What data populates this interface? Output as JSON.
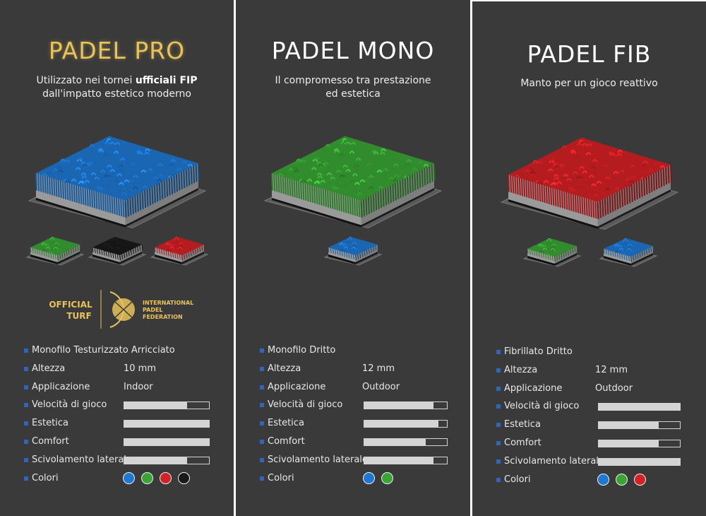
{
  "colors": {
    "blue": "#1e78d2",
    "green": "#3aa535",
    "red": "#d42125",
    "black": "#1a1a1a",
    "bullet": "#2f66b8",
    "gold": "#e9c35a"
  },
  "products": [
    {
      "title": "PADEL PRO",
      "subtitle_lines": [
        "Utilizzato nei tornei ",
        "ufficiali FIP",
        "dall'impatto estetico moderno"
      ],
      "turf_color": "blue",
      "thumbs": [
        "green",
        "black",
        "red"
      ],
      "logo": {
        "left_text": [
          "OFFICIAL",
          "TURF"
        ],
        "right_text": [
          "INTERNATIONAL",
          "PADEL",
          "FEDERATION"
        ]
      },
      "fibra": "Monofilo Testurizzato Arricciato",
      "altezza": "10 mm",
      "applicazione": "Indoor",
      "velocita": 0.74,
      "estetica": 1.0,
      "comfort": 1.0,
      "scivolamento": 0.74,
      "colori": [
        "blue",
        "green",
        "red",
        "black"
      ]
    },
    {
      "title": "PADEL MONO",
      "subtitle_lines": [
        "Il compromesso tra prestazione",
        "ed estetica"
      ],
      "turf_color": "green",
      "thumbs": [
        "blue"
      ],
      "fibra": "Monofilo Dritto",
      "altezza": "12 mm",
      "applicazione": "Outdoor",
      "velocita": 0.84,
      "estetica": 0.9,
      "comfort": 0.74,
      "scivolamento": 0.84,
      "colori": [
        "blue",
        "green"
      ]
    },
    {
      "title": "PADEL FIB",
      "subtitle_lines": [
        "Manto per un gioco reattivo"
      ],
      "turf_color": "red",
      "thumbs": [
        "green",
        "blue"
      ],
      "fibra": "Fibrillato Dritto",
      "altezza": "12 mm",
      "applicazione": "Outdoor",
      "velocita": 1.0,
      "estetica": 0.74,
      "comfort": 0.74,
      "scivolamento": 1.0,
      "colori": [
        "blue",
        "green",
        "red"
      ]
    }
  ],
  "labels": {
    "altezza": "Altezza",
    "applicazione": "Applicazione",
    "velocita": "Velocità di gioco",
    "estetica": "Estetica",
    "comfort": "Comfort",
    "scivolamento": "Scivolamento laterale",
    "colori": "Colori"
  }
}
